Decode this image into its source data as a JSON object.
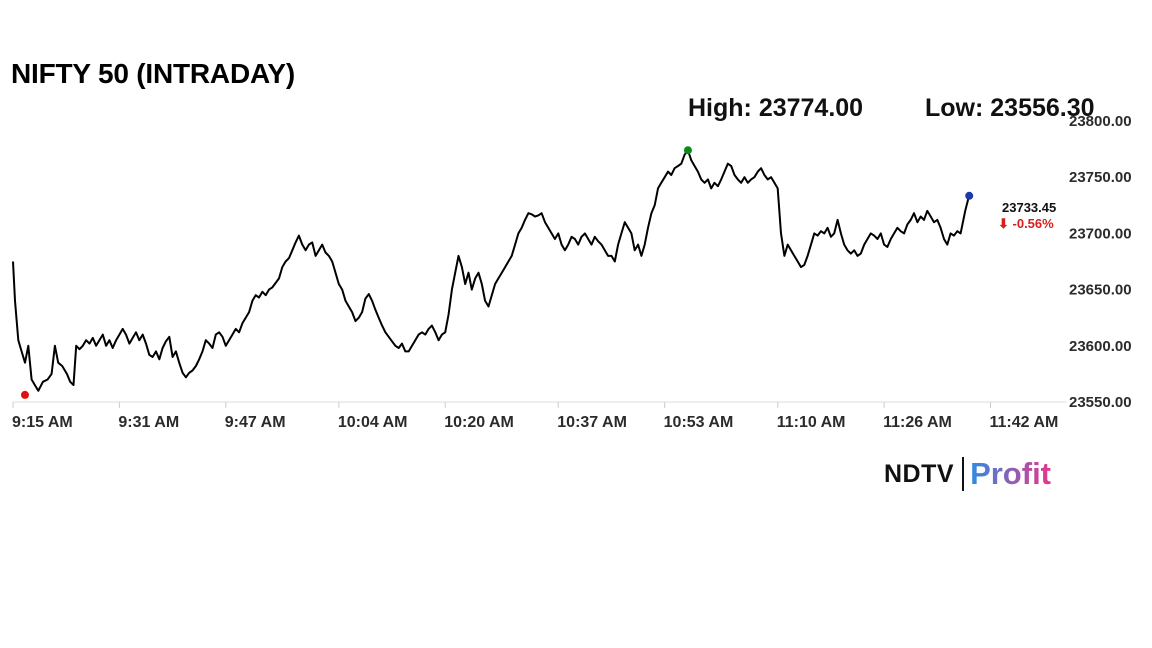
{
  "title": "NIFTY 50 (INTRADAY)",
  "high_label": "High: 23774.00",
  "low_label": "Low: 23556.30",
  "brand": {
    "part1": "NDTV",
    "part2": "Profit"
  },
  "colors": {
    "line": "#000000",
    "high_marker": "#0a8a1a",
    "low_marker": "#e01010",
    "last_marker": "#1a3aa8",
    "change_down": "#d42020",
    "profit_gradient_start": "#2d8de0",
    "profit_gradient_end": "#e8348c"
  },
  "chart_data": {
    "type": "line",
    "title": "NIFTY 50 (INTRADAY)",
    "xlabel": "",
    "ylabel": "",
    "ylim": [
      23550,
      23800
    ],
    "yticks": [
      23800,
      23750,
      23700,
      23650,
      23600,
      23550
    ],
    "ytick_labels": [
      "23800.00",
      "23750.00",
      "23700.00",
      "23650.00",
      "23600.00",
      "23550.00"
    ],
    "x_minutes_range": [
      0,
      157
    ],
    "xticks": [
      {
        "minute": 0,
        "label": "9:15 AM"
      },
      {
        "minute": 16,
        "label": "9:31 AM"
      },
      {
        "minute": 32,
        "label": "9:47 AM"
      },
      {
        "minute": 49,
        "label": "10:04 AM"
      },
      {
        "minute": 65,
        "label": "10:20 AM"
      },
      {
        "minute": 82,
        "label": "10:37 AM"
      },
      {
        "minute": 98,
        "label": "10:53 AM"
      },
      {
        "minute": 115,
        "label": "11:10 AM"
      },
      {
        "minute": 131,
        "label": "11:26 AM"
      },
      {
        "minute": 147,
        "label": "11:42 AM"
      }
    ],
    "series": [
      {
        "name": "",
        "points": [
          [
            0,
            23675
          ],
          [
            0.3,
            23640
          ],
          [
            0.8,
            23605
          ],
          [
            1.3,
            23595
          ],
          [
            1.8,
            23585
          ],
          [
            2.3,
            23600
          ],
          [
            2.8,
            23570
          ],
          [
            3.3,
            23565
          ],
          [
            3.8,
            23560
          ],
          [
            4.5,
            23568
          ],
          [
            5.2,
            23570
          ],
          [
            5.8,
            23575
          ],
          [
            6.3,
            23600
          ],
          [
            6.8,
            23585
          ],
          [
            7.4,
            23582
          ],
          [
            8.1,
            23575
          ],
          [
            8.6,
            23568
          ],
          [
            9.1,
            23565
          ],
          [
            9.5,
            23600
          ],
          [
            10,
            23597
          ],
          [
            10.5,
            23600
          ],
          [
            11,
            23605
          ],
          [
            11.5,
            23602
          ],
          [
            12,
            23607
          ],
          [
            12.5,
            23600
          ],
          [
            13,
            23605
          ],
          [
            13.5,
            23610
          ],
          [
            14,
            23600
          ],
          [
            14.5,
            23605
          ],
          [
            15,
            23598
          ],
          [
            15.5,
            23605
          ],
          [
            16,
            23610
          ],
          [
            16.5,
            23615
          ],
          [
            17,
            23610
          ],
          [
            17.5,
            23602
          ],
          [
            18,
            23607
          ],
          [
            18.5,
            23612
          ],
          [
            19,
            23605
          ],
          [
            19.5,
            23610
          ],
          [
            20,
            23602
          ],
          [
            20.5,
            23592
          ],
          [
            21,
            23590
          ],
          [
            21.5,
            23595
          ],
          [
            22,
            23588
          ],
          [
            22.5,
            23598
          ],
          [
            23,
            23604
          ],
          [
            23.5,
            23608
          ],
          [
            24,
            23590
          ],
          [
            24.5,
            23595
          ],
          [
            25,
            23585
          ],
          [
            25.5,
            23576
          ],
          [
            26,
            23572
          ],
          [
            26.5,
            23576
          ],
          [
            27,
            23578
          ],
          [
            27.5,
            23582
          ],
          [
            28,
            23588
          ],
          [
            28.5,
            23595
          ],
          [
            29,
            23605
          ],
          [
            29.5,
            23602
          ],
          [
            30,
            23598
          ],
          [
            30.5,
            23610
          ],
          [
            31,
            23612
          ],
          [
            31.5,
            23608
          ],
          [
            32,
            23600
          ],
          [
            32.5,
            23605
          ],
          [
            33,
            23610
          ],
          [
            33.5,
            23615
          ],
          [
            34,
            23612
          ],
          [
            34.5,
            23620
          ],
          [
            35,
            23625
          ],
          [
            35.5,
            23630
          ],
          [
            36,
            23640
          ],
          [
            36.5,
            23645
          ],
          [
            37,
            23643
          ],
          [
            37.5,
            23648
          ],
          [
            38,
            23645
          ],
          [
            38.5,
            23650
          ],
          [
            39,
            23652
          ],
          [
            39.5,
            23656
          ],
          [
            40,
            23660
          ],
          [
            40.5,
            23670
          ],
          [
            41,
            23675
          ],
          [
            41.5,
            23678
          ],
          [
            42,
            23685
          ],
          [
            42.5,
            23692
          ],
          [
            43,
            23698
          ],
          [
            43.5,
            23690
          ],
          [
            44,
            23685
          ],
          [
            44.5,
            23690
          ],
          [
            45,
            23692
          ],
          [
            45.5,
            23680
          ],
          [
            46,
            23685
          ],
          [
            46.5,
            23690
          ],
          [
            47,
            23683
          ],
          [
            47.5,
            23680
          ],
          [
            48,
            23675
          ],
          [
            48.5,
            23665
          ],
          [
            49,
            23655
          ],
          [
            49.5,
            23650
          ],
          [
            50,
            23640
          ],
          [
            50.5,
            23635
          ],
          [
            51,
            23630
          ],
          [
            51.5,
            23622
          ],
          [
            52,
            23625
          ],
          [
            52.5,
            23630
          ],
          [
            53,
            23642
          ],
          [
            53.5,
            23646
          ],
          [
            54,
            23640
          ],
          [
            54.5,
            23632
          ],
          [
            55,
            23625
          ],
          [
            55.5,
            23618
          ],
          [
            56,
            23612
          ],
          [
            56.5,
            23608
          ],
          [
            57,
            23604
          ],
          [
            57.5,
            23600
          ],
          [
            58,
            23598
          ],
          [
            58.5,
            23602
          ],
          [
            59,
            23595
          ],
          [
            59.5,
            23595
          ],
          [
            60,
            23600
          ],
          [
            60.5,
            23605
          ],
          [
            61,
            23610
          ],
          [
            61.5,
            23612
          ],
          [
            62,
            23610
          ],
          [
            62.5,
            23615
          ],
          [
            63,
            23618
          ],
          [
            63.5,
            23612
          ],
          [
            64,
            23605
          ],
          [
            64.5,
            23610
          ],
          [
            65,
            23612
          ],
          [
            65.5,
            23628
          ],
          [
            66,
            23650
          ],
          [
            66.5,
            23665
          ],
          [
            67,
            23680
          ],
          [
            67.5,
            23670
          ],
          [
            68,
            23655
          ],
          [
            68.5,
            23665
          ],
          [
            69,
            23650
          ],
          [
            69.5,
            23660
          ],
          [
            70,
            23665
          ],
          [
            70.5,
            23655
          ],
          [
            71,
            23640
          ],
          [
            71.5,
            23635
          ],
          [
            72,
            23645
          ],
          [
            72.5,
            23655
          ],
          [
            73,
            23660
          ],
          [
            73.5,
            23665
          ],
          [
            74,
            23670
          ],
          [
            74.5,
            23675
          ],
          [
            75,
            23680
          ],
          [
            75.5,
            23690
          ],
          [
            76,
            23700
          ],
          [
            76.5,
            23705
          ],
          [
            77,
            23712
          ],
          [
            77.5,
            23718
          ],
          [
            78,
            23717
          ],
          [
            78.5,
            23715
          ],
          [
            79,
            23716
          ],
          [
            79.5,
            23718
          ],
          [
            80,
            23710
          ],
          [
            80.5,
            23705
          ],
          [
            81,
            23700
          ],
          [
            81.5,
            23695
          ],
          [
            82,
            23700
          ],
          [
            82.5,
            23690
          ],
          [
            83,
            23685
          ],
          [
            83.5,
            23690
          ],
          [
            84,
            23697
          ],
          [
            84.5,
            23695
          ],
          [
            85,
            23690
          ],
          [
            85.5,
            23697
          ],
          [
            86,
            23700
          ],
          [
            86.5,
            23695
          ],
          [
            87,
            23690
          ],
          [
            87.5,
            23697
          ],
          [
            88,
            23693
          ],
          [
            88.5,
            23690
          ],
          [
            89,
            23685
          ],
          [
            89.5,
            23680
          ],
          [
            90,
            23680
          ],
          [
            90.5,
            23675
          ],
          [
            91,
            23690
          ],
          [
            91.5,
            23700
          ],
          [
            92,
            23710
          ],
          [
            92.5,
            23705
          ],
          [
            93,
            23700
          ],
          [
            93.5,
            23685
          ],
          [
            94,
            23690
          ],
          [
            94.5,
            23680
          ],
          [
            95,
            23690
          ],
          [
            95.5,
            23705
          ],
          [
            96,
            23718
          ],
          [
            96.5,
            23725
          ],
          [
            97,
            23740
          ],
          [
            97.5,
            23745
          ],
          [
            98,
            23750
          ],
          [
            98.5,
            23755
          ],
          [
            99,
            23752
          ],
          [
            99.5,
            23758
          ],
          [
            100,
            23760
          ],
          [
            100.5,
            23762
          ],
          [
            101,
            23770
          ],
          [
            101.5,
            23774
          ],
          [
            102,
            23765
          ],
          [
            102.5,
            23760
          ],
          [
            103,
            23755
          ],
          [
            103.5,
            23748
          ],
          [
            104,
            23745
          ],
          [
            104.5,
            23748
          ],
          [
            105,
            23740
          ],
          [
            105.5,
            23745
          ],
          [
            106,
            23742
          ],
          [
            106.5,
            23748
          ],
          [
            107,
            23755
          ],
          [
            107.5,
            23762
          ],
          [
            108,
            23760
          ],
          [
            108.5,
            23752
          ],
          [
            109,
            23748
          ],
          [
            109.5,
            23745
          ],
          [
            110,
            23750
          ],
          [
            110.5,
            23745
          ],
          [
            111,
            23748
          ],
          [
            111.5,
            23750
          ],
          [
            112,
            23755
          ],
          [
            112.5,
            23758
          ],
          [
            113,
            23752
          ],
          [
            113.5,
            23748
          ],
          [
            114,
            23750
          ],
          [
            114.5,
            23745
          ],
          [
            115,
            23740
          ],
          [
            115.5,
            23700
          ],
          [
            116,
            23680
          ],
          [
            116.5,
            23690
          ],
          [
            117,
            23685
          ],
          [
            117.5,
            23680
          ],
          [
            118,
            23675
          ],
          [
            118.5,
            23670
          ],
          [
            119,
            23672
          ],
          [
            119.5,
            23680
          ],
          [
            120,
            23690
          ],
          [
            120.5,
            23700
          ],
          [
            121,
            23698
          ],
          [
            121.5,
            23702
          ],
          [
            122,
            23700
          ],
          [
            122.5,
            23705
          ],
          [
            123,
            23697
          ],
          [
            123.5,
            23700
          ],
          [
            124,
            23712
          ],
          [
            124.5,
            23700
          ],
          [
            125,
            23690
          ],
          [
            125.5,
            23685
          ],
          [
            126,
            23682
          ],
          [
            126.5,
            23685
          ],
          [
            127,
            23680
          ],
          [
            127.5,
            23682
          ],
          [
            128,
            23690
          ],
          [
            128.5,
            23695
          ],
          [
            129,
            23700
          ],
          [
            129.5,
            23698
          ],
          [
            130,
            23695
          ],
          [
            130.5,
            23700
          ],
          [
            131,
            23690
          ],
          [
            131.5,
            23688
          ],
          [
            132,
            23695
          ],
          [
            132.5,
            23700
          ],
          [
            133,
            23705
          ],
          [
            133.5,
            23702
          ],
          [
            134,
            23700
          ],
          [
            134.5,
            23708
          ],
          [
            135,
            23712
          ],
          [
            135.5,
            23718
          ],
          [
            136,
            23710
          ],
          [
            136.5,
            23715
          ],
          [
            137,
            23712
          ],
          [
            137.5,
            23720
          ],
          [
            138,
            23715
          ],
          [
            138.5,
            23710
          ],
          [
            139,
            23712
          ],
          [
            139.5,
            23705
          ],
          [
            140,
            23695
          ],
          [
            140.5,
            23690
          ],
          [
            141,
            23700
          ],
          [
            141.5,
            23698
          ],
          [
            142,
            23702
          ],
          [
            142.5,
            23700
          ],
          [
            143.2,
            23720
          ],
          [
            143.8,
            23734
          ]
        ]
      }
    ],
    "markers": [
      {
        "name": "high",
        "x": 101.5,
        "y": 23774.0
      },
      {
        "name": "low",
        "x": 1.8,
        "y": 23556.3
      },
      {
        "name": "last",
        "x": 143.8,
        "y": 23733.45
      }
    ],
    "last_price_label": "23733.45",
    "last_change_label": "⬇ -0.56%",
    "grid": false
  }
}
